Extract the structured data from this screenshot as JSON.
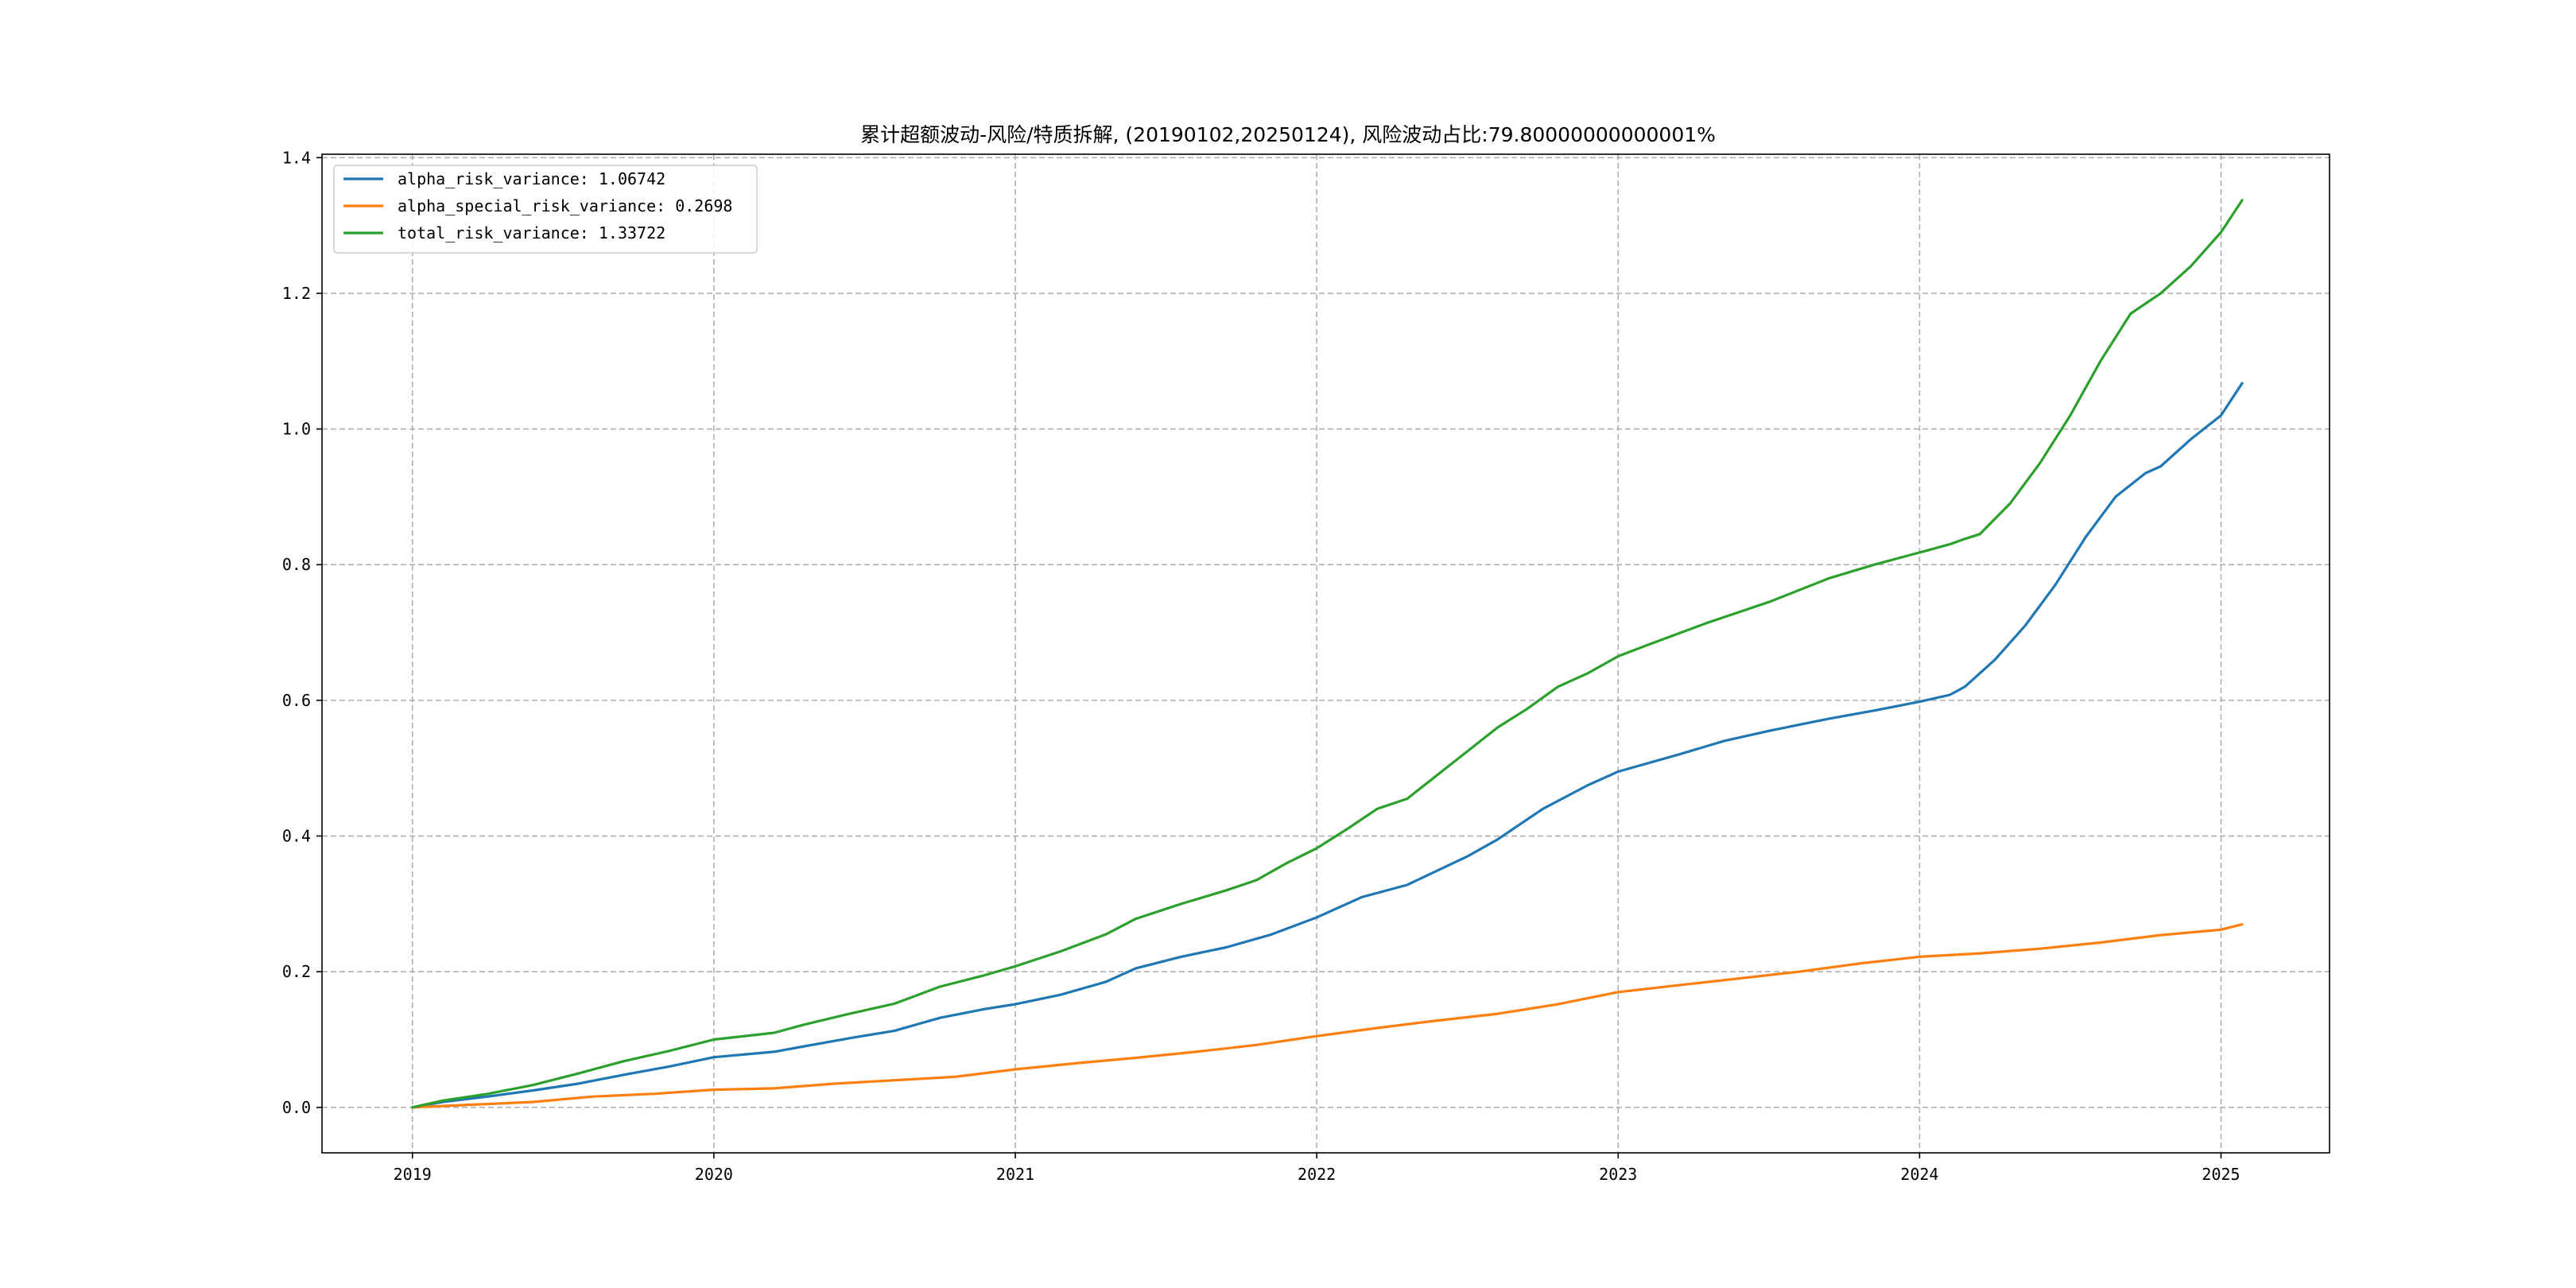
{
  "chart_data": {
    "type": "line",
    "title": "累计超额波动-风险/特质拆解, (20190102,20250124), 风险波动占比:79.80000000000001%",
    "xlabel": "",
    "ylabel": "",
    "xlim": [
      2018.7,
      2025.36
    ],
    "ylim": [
      -0.067,
      1.405
    ],
    "x_ticks": [
      {
        "value": 2019,
        "label": "2019"
      },
      {
        "value": 2020,
        "label": "2020"
      },
      {
        "value": 2021,
        "label": "2021"
      },
      {
        "value": 2022,
        "label": "2022"
      },
      {
        "value": 2023,
        "label": "2023"
      },
      {
        "value": 2024,
        "label": "2024"
      },
      {
        "value": 2025,
        "label": "2025"
      }
    ],
    "y_ticks": [
      {
        "value": 0.0,
        "label": "0.0"
      },
      {
        "value": 0.2,
        "label": "0.2"
      },
      {
        "value": 0.4,
        "label": "0.4"
      },
      {
        "value": 0.6,
        "label": "0.6"
      },
      {
        "value": 0.8,
        "label": "0.8"
      },
      {
        "value": 1.0,
        "label": "1.0"
      },
      {
        "value": 1.2,
        "label": "1.2"
      },
      {
        "value": 1.4,
        "label": "1.4"
      }
    ],
    "grid": true,
    "legend_position": "top-left",
    "series": [
      {
        "name": "alpha_risk_variance",
        "legend_label": "alpha_risk_variance: 1.06742",
        "color": "#1f77b4",
        "points": [
          [
            2019.0,
            0.0
          ],
          [
            2019.1,
            0.008
          ],
          [
            2019.25,
            0.016
          ],
          [
            2019.4,
            0.025
          ],
          [
            2019.55,
            0.035
          ],
          [
            2019.7,
            0.048
          ],
          [
            2019.85,
            0.06
          ],
          [
            2020.0,
            0.074
          ],
          [
            2020.2,
            0.082
          ],
          [
            2020.3,
            0.09
          ],
          [
            2020.45,
            0.102
          ],
          [
            2020.6,
            0.113
          ],
          [
            2020.75,
            0.132
          ],
          [
            2020.9,
            0.145
          ],
          [
            2021.0,
            0.152
          ],
          [
            2021.15,
            0.166
          ],
          [
            2021.3,
            0.185
          ],
          [
            2021.4,
            0.205
          ],
          [
            2021.55,
            0.222
          ],
          [
            2021.7,
            0.236
          ],
          [
            2021.85,
            0.255
          ],
          [
            2022.0,
            0.28
          ],
          [
            2022.15,
            0.31
          ],
          [
            2022.3,
            0.328
          ],
          [
            2022.5,
            0.37
          ],
          [
            2022.6,
            0.395
          ],
          [
            2022.75,
            0.44
          ],
          [
            2022.9,
            0.475
          ],
          [
            2023.0,
            0.495
          ],
          [
            2023.2,
            0.52
          ],
          [
            2023.35,
            0.54
          ],
          [
            2023.5,
            0.555
          ],
          [
            2023.7,
            0.573
          ],
          [
            2023.85,
            0.585
          ],
          [
            2024.0,
            0.598
          ],
          [
            2024.1,
            0.608
          ],
          [
            2024.15,
            0.62
          ],
          [
            2024.25,
            0.66
          ],
          [
            2024.35,
            0.71
          ],
          [
            2024.45,
            0.77
          ],
          [
            2024.55,
            0.84
          ],
          [
            2024.65,
            0.9
          ],
          [
            2024.75,
            0.935
          ],
          [
            2024.8,
            0.945
          ],
          [
            2024.9,
            0.985
          ],
          [
            2025.0,
            1.02
          ],
          [
            2025.07,
            1.06742
          ]
        ]
      },
      {
        "name": "alpha_special_risk_variance",
        "legend_label": "alpha_special_risk_variance: 0.2698",
        "color": "#ff7f0e",
        "points": [
          [
            2019.0,
            0.0
          ],
          [
            2019.2,
            0.004
          ],
          [
            2019.4,
            0.008
          ],
          [
            2019.6,
            0.016
          ],
          [
            2019.8,
            0.02
          ],
          [
            2020.0,
            0.026
          ],
          [
            2020.2,
            0.028
          ],
          [
            2020.4,
            0.035
          ],
          [
            2020.6,
            0.04
          ],
          [
            2020.8,
            0.045
          ],
          [
            2021.0,
            0.056
          ],
          [
            2021.2,
            0.065
          ],
          [
            2021.4,
            0.073
          ],
          [
            2021.6,
            0.082
          ],
          [
            2021.8,
            0.092
          ],
          [
            2022.0,
            0.105
          ],
          [
            2022.2,
            0.117
          ],
          [
            2022.4,
            0.128
          ],
          [
            2022.6,
            0.138
          ],
          [
            2022.8,
            0.152
          ],
          [
            2023.0,
            0.17
          ],
          [
            2023.2,
            0.18
          ],
          [
            2023.4,
            0.19
          ],
          [
            2023.6,
            0.2
          ],
          [
            2023.8,
            0.212
          ],
          [
            2024.0,
            0.222
          ],
          [
            2024.2,
            0.227
          ],
          [
            2024.4,
            0.234
          ],
          [
            2024.6,
            0.243
          ],
          [
            2024.8,
            0.254
          ],
          [
            2025.0,
            0.262
          ],
          [
            2025.07,
            0.2698
          ]
        ]
      },
      {
        "name": "total_risk_variance",
        "legend_label": "total_risk_variance: 1.33722",
        "color": "#2ca02c",
        "points": [
          [
            2019.0,
            0.0
          ],
          [
            2019.1,
            0.01
          ],
          [
            2019.25,
            0.02
          ],
          [
            2019.4,
            0.033
          ],
          [
            2019.55,
            0.05
          ],
          [
            2019.7,
            0.068
          ],
          [
            2019.85,
            0.083
          ],
          [
            2020.0,
            0.1
          ],
          [
            2020.2,
            0.11
          ],
          [
            2020.3,
            0.122
          ],
          [
            2020.45,
            0.138
          ],
          [
            2020.6,
            0.153
          ],
          [
            2020.75,
            0.178
          ],
          [
            2020.9,
            0.195
          ],
          [
            2021.0,
            0.208
          ],
          [
            2021.15,
            0.23
          ],
          [
            2021.3,
            0.255
          ],
          [
            2021.4,
            0.278
          ],
          [
            2021.55,
            0.3
          ],
          [
            2021.7,
            0.32
          ],
          [
            2021.8,
            0.335
          ],
          [
            2021.9,
            0.36
          ],
          [
            2022.0,
            0.382
          ],
          [
            2022.1,
            0.41
          ],
          [
            2022.2,
            0.44
          ],
          [
            2022.3,
            0.455
          ],
          [
            2022.4,
            0.49
          ],
          [
            2022.5,
            0.525
          ],
          [
            2022.6,
            0.56
          ],
          [
            2022.7,
            0.588
          ],
          [
            2022.8,
            0.62
          ],
          [
            2022.9,
            0.64
          ],
          [
            2023.0,
            0.665
          ],
          [
            2023.1,
            0.682
          ],
          [
            2023.3,
            0.715
          ],
          [
            2023.5,
            0.745
          ],
          [
            2023.7,
            0.78
          ],
          [
            2023.85,
            0.8
          ],
          [
            2024.0,
            0.818
          ],
          [
            2024.1,
            0.83
          ],
          [
            2024.15,
            0.838
          ],
          [
            2024.2,
            0.845
          ],
          [
            2024.3,
            0.89
          ],
          [
            2024.4,
            0.95
          ],
          [
            2024.5,
            1.02
          ],
          [
            2024.6,
            1.1
          ],
          [
            2024.7,
            1.17
          ],
          [
            2024.8,
            1.2
          ],
          [
            2024.9,
            1.24
          ],
          [
            2025.0,
            1.29
          ],
          [
            2025.07,
            1.33722
          ]
        ]
      }
    ]
  }
}
